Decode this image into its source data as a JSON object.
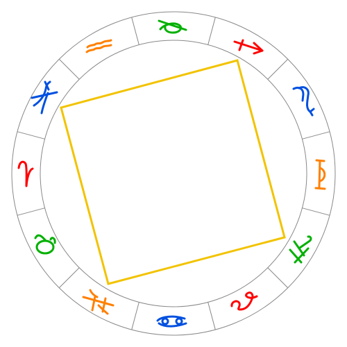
{
  "colors": {
    "background": "#ffffff",
    "ring_stroke": "#888888",
    "aspect_square": "#f2c300",
    "fire": "#ff0000",
    "earth": "#00b000",
    "air": "#ff8000",
    "water": "#0050e0"
  },
  "signs": [
    {
      "name": "aries-glyph-icon",
      "element": "fire"
    },
    {
      "name": "taurus-glyph-icon",
      "element": "earth"
    },
    {
      "name": "gemini-glyph-icon",
      "element": "air"
    },
    {
      "name": "cancer-glyph-icon",
      "element": "water"
    },
    {
      "name": "leo-glyph-icon",
      "element": "fire"
    },
    {
      "name": "virgo-glyph-icon",
      "element": "earth"
    },
    {
      "name": "libra-glyph-icon",
      "element": "air"
    },
    {
      "name": "scorpio-glyph-icon",
      "element": "water"
    },
    {
      "name": "sagittarius-glyph-icon",
      "element": "fire"
    },
    {
      "name": "capricorn-glyph-icon",
      "element": "earth"
    },
    {
      "name": "aquarius-glyph-icon",
      "element": "air"
    },
    {
      "name": "pisces-glyph-icon",
      "element": "water"
    }
  ],
  "aspect": {
    "type": "square-icon"
  }
}
